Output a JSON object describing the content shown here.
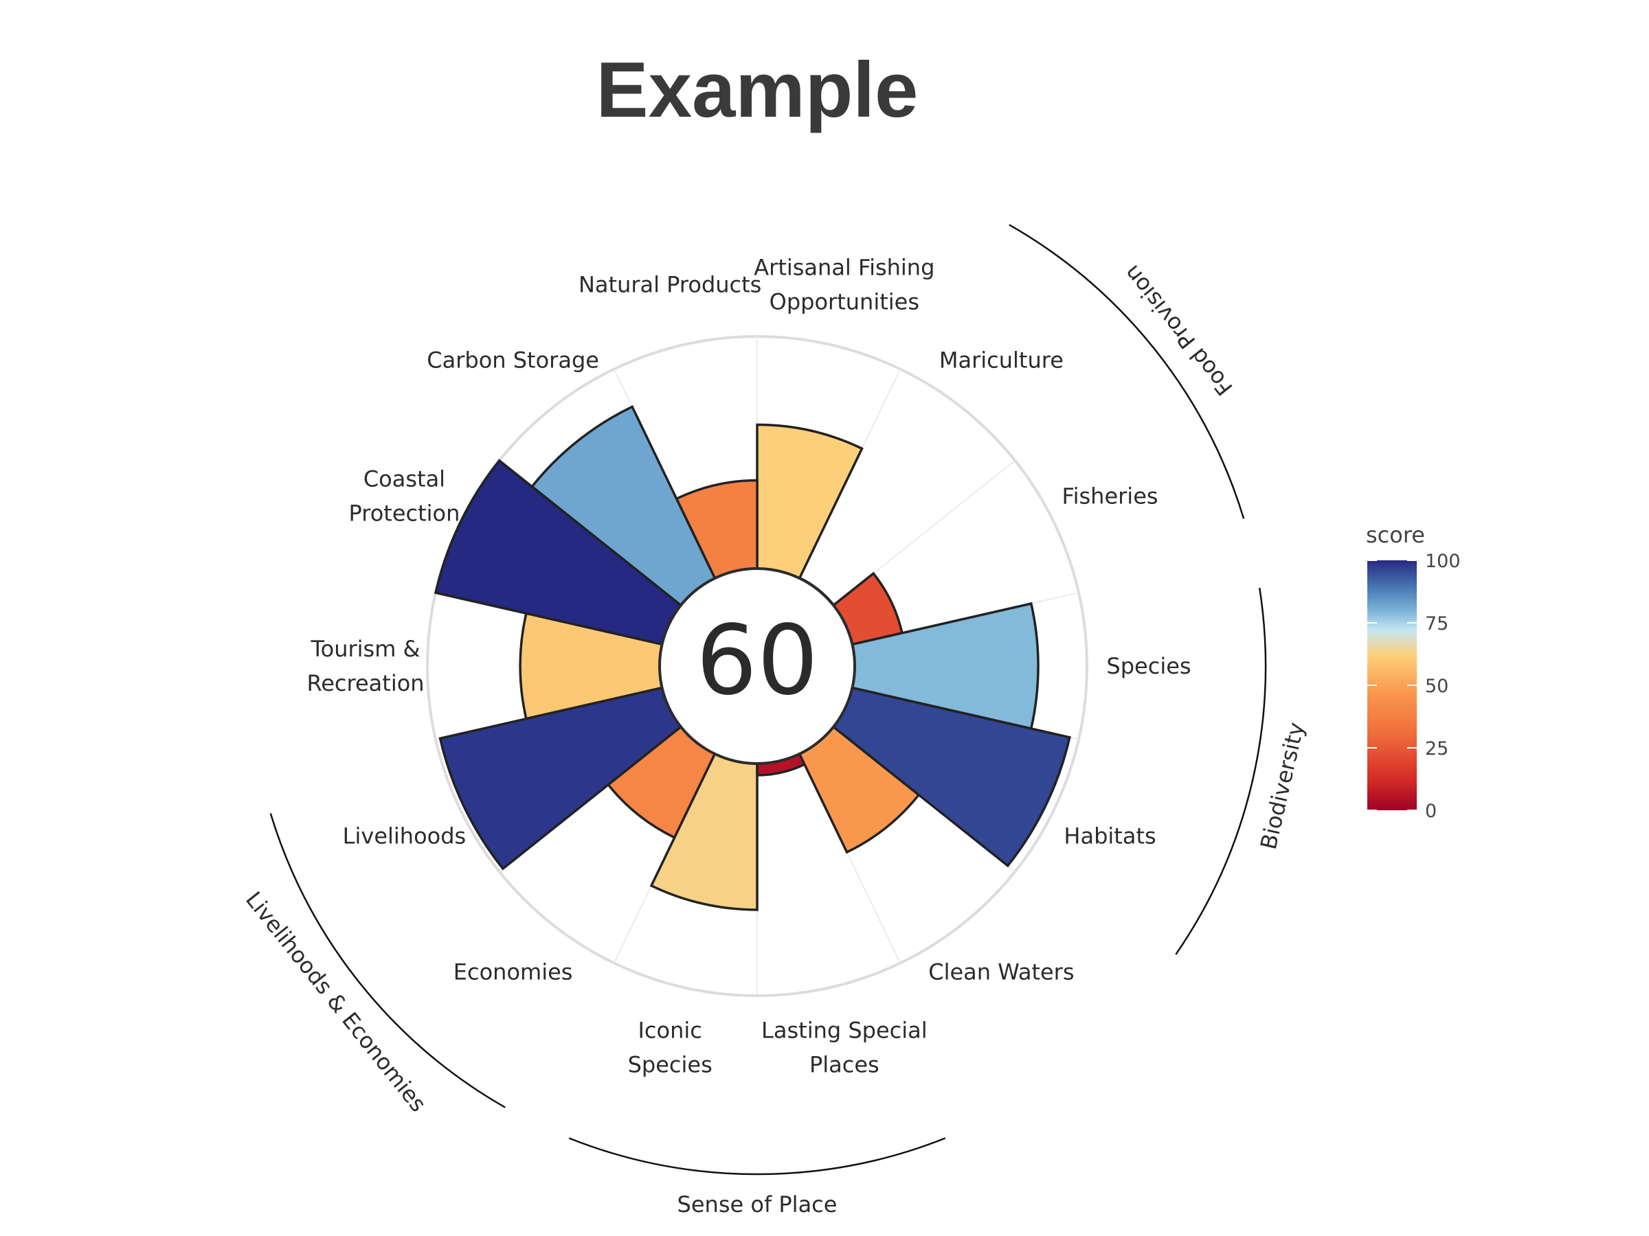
{
  "chart_data": {
    "type": "bar",
    "title": "Example",
    "center_score": "60",
    "categories": [
      "Fisheries",
      "Mariculture",
      "Artisanal Fishing Opportunities",
      "Natural Products",
      "Carbon Storage",
      "Coastal Protection",
      "Tourism & Recreation",
      "Livelihoods",
      "Economies",
      "Iconic Species",
      "Lasting Special Places",
      "Clean Waters",
      "Habitats",
      "Species"
    ],
    "label_lines": [
      [
        "Fisheries"
      ],
      [
        "Mariculture"
      ],
      [
        "Artisanal Fishing",
        "Opportunities"
      ],
      [
        "Natural Products"
      ],
      [
        "Carbon Storage"
      ],
      [
        "Coastal",
        "Protection"
      ],
      [
        "Tourism &",
        "Recreation"
      ],
      [
        "Livelihoods"
      ],
      [
        "Economies"
      ],
      [
        "Iconic",
        "Species"
      ],
      [
        "Lasting Special",
        "Places"
      ],
      [
        "Clean Waters"
      ],
      [
        "Habitats"
      ],
      [
        "Species"
      ]
    ],
    "values": [
      22,
      0,
      62,
      38,
      82,
      100,
      60,
      98,
      40,
      63,
      5,
      47,
      96,
      79
    ],
    "ylim": [
      0,
      100
    ],
    "groups": [
      {
        "name": "Food Provision",
        "members": [
          "Fisheries",
          "Mariculture"
        ]
      },
      {
        "name": "Biodiversity",
        "members": [
          "Species",
          "Habitats"
        ]
      },
      {
        "name": "Sense of Place",
        "members": [
          "Iconic Species",
          "Lasting Special Places"
        ]
      },
      {
        "name": "Livelihoods & Economies",
        "members": [
          "Livelihoods",
          "Economies"
        ]
      }
    ],
    "legend": {
      "title": "score",
      "ticks": [
        "100",
        "75",
        "50",
        "25",
        "0"
      ],
      "tick_values": [
        100,
        75,
        50,
        25,
        0
      ],
      "position": "right"
    },
    "color_scale": [
      {
        "value": 0,
        "color": "#9e0027"
      },
      {
        "value": 12,
        "color": "#d42a26"
      },
      {
        "value": 30,
        "color": "#ef6b3b"
      },
      {
        "value": 48,
        "color": "#fa9b4e"
      },
      {
        "value": 62,
        "color": "#fcd07a"
      },
      {
        "value": 72,
        "color": "#c5e6ef"
      },
      {
        "value": 80,
        "color": "#7ab3d6"
      },
      {
        "value": 88,
        "color": "#4d7fb8"
      },
      {
        "value": 100,
        "color": "#252982"
      }
    ]
  }
}
